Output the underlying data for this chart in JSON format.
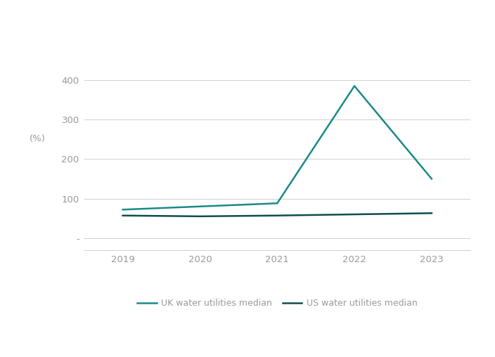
{
  "years": [
    2019,
    2020,
    2021,
    2022,
    2023
  ],
  "uk_values": [
    72,
    80,
    88,
    385,
    150
  ],
  "us_values": [
    57,
    55,
    57,
    60,
    63
  ],
  "uk_color": "#1a8a87",
  "us_color": "#0d4f4c",
  "uk_label": "UK water utilities median",
  "us_label": "US water utilities median",
  "ylabel": "(%)",
  "yticks": [
    0,
    100,
    200,
    300,
    400
  ],
  "ytick_labels": [
    "-",
    "100",
    "200",
    "300",
    "400"
  ],
  "ylim": [
    -30,
    440
  ],
  "xlim": [
    2018.5,
    2023.5
  ],
  "background_color": "#ffffff",
  "grid_color": "#d0d0d0",
  "tick_label_color": "#999999",
  "line_width": 1.8,
  "legend_fontsize": 9,
  "tick_fontsize": 9.5
}
